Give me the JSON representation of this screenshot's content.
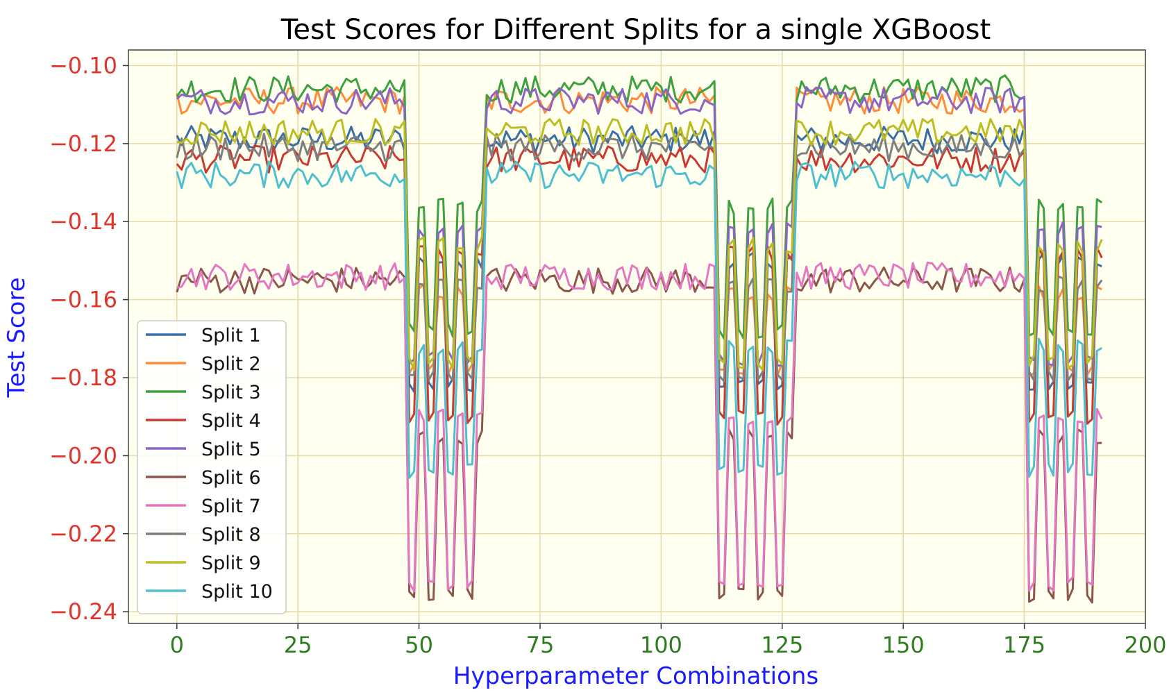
{
  "chart_data": {
    "type": "line",
    "title": "Test Scores for Different Splits for a single XGBoost",
    "xlabel": "Hyperparameter Combinations",
    "ylabel": "Test Score",
    "xlim": [
      -10,
      200
    ],
    "ylim": [
      -0.243,
      -0.096
    ],
    "xticks": [
      "0",
      "25",
      "50",
      "75",
      "100",
      "125",
      "150",
      "175",
      "200"
    ],
    "yticks": [
      "−0.10",
      "−0.12",
      "−0.14",
      "−0.16",
      "−0.18",
      "−0.20",
      "−0.22",
      "−0.24"
    ],
    "grid": true,
    "legend_position": "lower-left",
    "background": "#fffff0",
    "n_points": 192,
    "x_range": [
      0,
      191
    ],
    "segments": [
      [
        0,
        47,
        "high"
      ],
      [
        48,
        63,
        "low"
      ],
      [
        64,
        111,
        "high"
      ],
      [
        112,
        127,
        "low"
      ],
      [
        128,
        175,
        "high"
      ],
      [
        176,
        191,
        "low"
      ]
    ],
    "series": [
      {
        "name": "Split 1",
        "color": "#3a6ea5",
        "high": -0.119,
        "low": [
          -0.182,
          -0.15
        ]
      },
      {
        "name": "Split 2",
        "color": "#ff8c3a",
        "high": -0.109,
        "low": [
          -0.178,
          -0.158
        ]
      },
      {
        "name": "Split 3",
        "color": "#3fa03f",
        "high": -0.106,
        "low": [
          -0.168,
          -0.136
        ]
      },
      {
        "name": "Split 4",
        "color": "#c83a32",
        "high": -0.124,
        "low": [
          -0.19,
          -0.148
        ]
      },
      {
        "name": "Split 5",
        "color": "#8c64c4",
        "high": -0.109,
        "low": [
          -0.175,
          -0.142
        ]
      },
      {
        "name": "Split 6",
        "color": "#8c564b",
        "high": -0.155,
        "low": [
          -0.236,
          -0.195
        ]
      },
      {
        "name": "Split 7",
        "color": "#e377c2",
        "high": -0.154,
        "low": [
          -0.233,
          -0.19
        ]
      },
      {
        "name": "Split 8",
        "color": "#7f7f7f",
        "high": -0.121,
        "low": [
          -0.18,
          -0.156
        ]
      },
      {
        "name": "Split 9",
        "color": "#bcbd22",
        "high": -0.117,
        "low": [
          -0.176,
          -0.146
        ]
      },
      {
        "name": "Split 10",
        "color": "#4fbfd0",
        "high": -0.128,
        "low": [
          -0.204,
          -0.172
        ]
      }
    ]
  }
}
